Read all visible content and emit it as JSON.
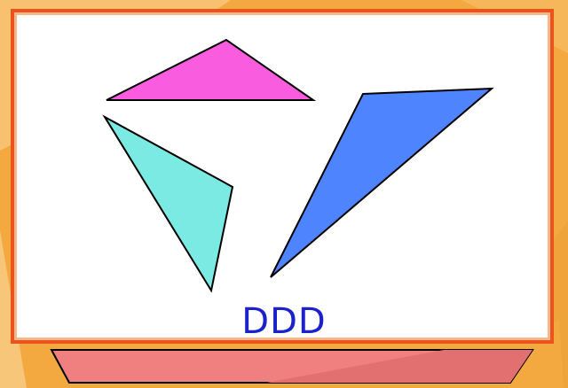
{
  "caption": "DDD",
  "colors": {
    "background": "#f3a93f",
    "frame": "#e8541c",
    "panel": "#ffffff",
    "base": "#f08080",
    "triangle_magenta": "#fa5ce0",
    "triangle_cyan": "#7aeae2",
    "triangle_blue": "#4f84ff",
    "caption": "#1a22c8"
  }
}
